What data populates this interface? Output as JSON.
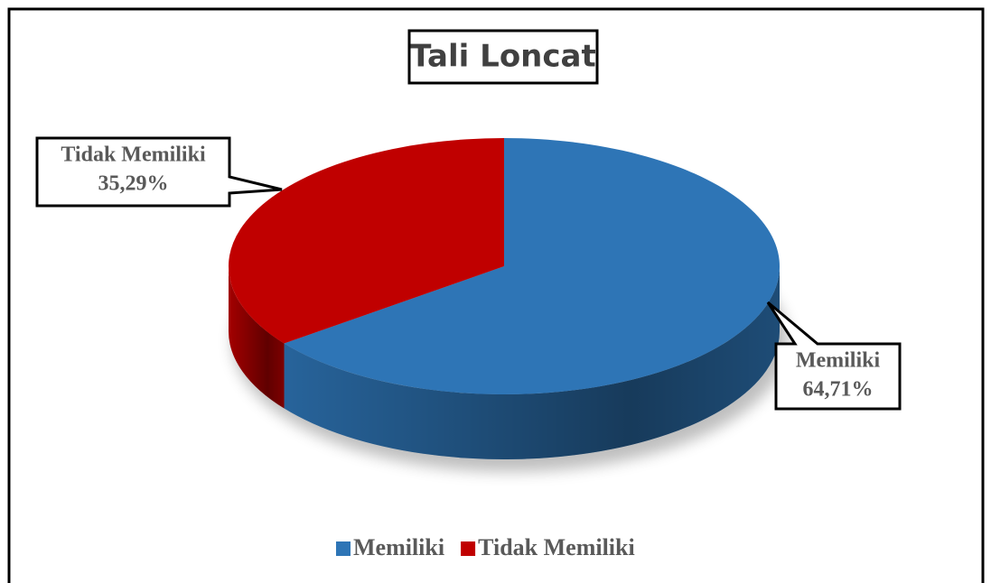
{
  "chart_data": {
    "type": "pie",
    "title": "Tali Loncat",
    "categories": [
      "Memiliki",
      "Tidak Memiliki"
    ],
    "values": [
      64.71,
      35.29
    ],
    "value_labels": [
      "64,71%",
      "35,29%"
    ],
    "colors": [
      "#2e75b6",
      "#c00000"
    ],
    "legend": "bottom"
  }
}
